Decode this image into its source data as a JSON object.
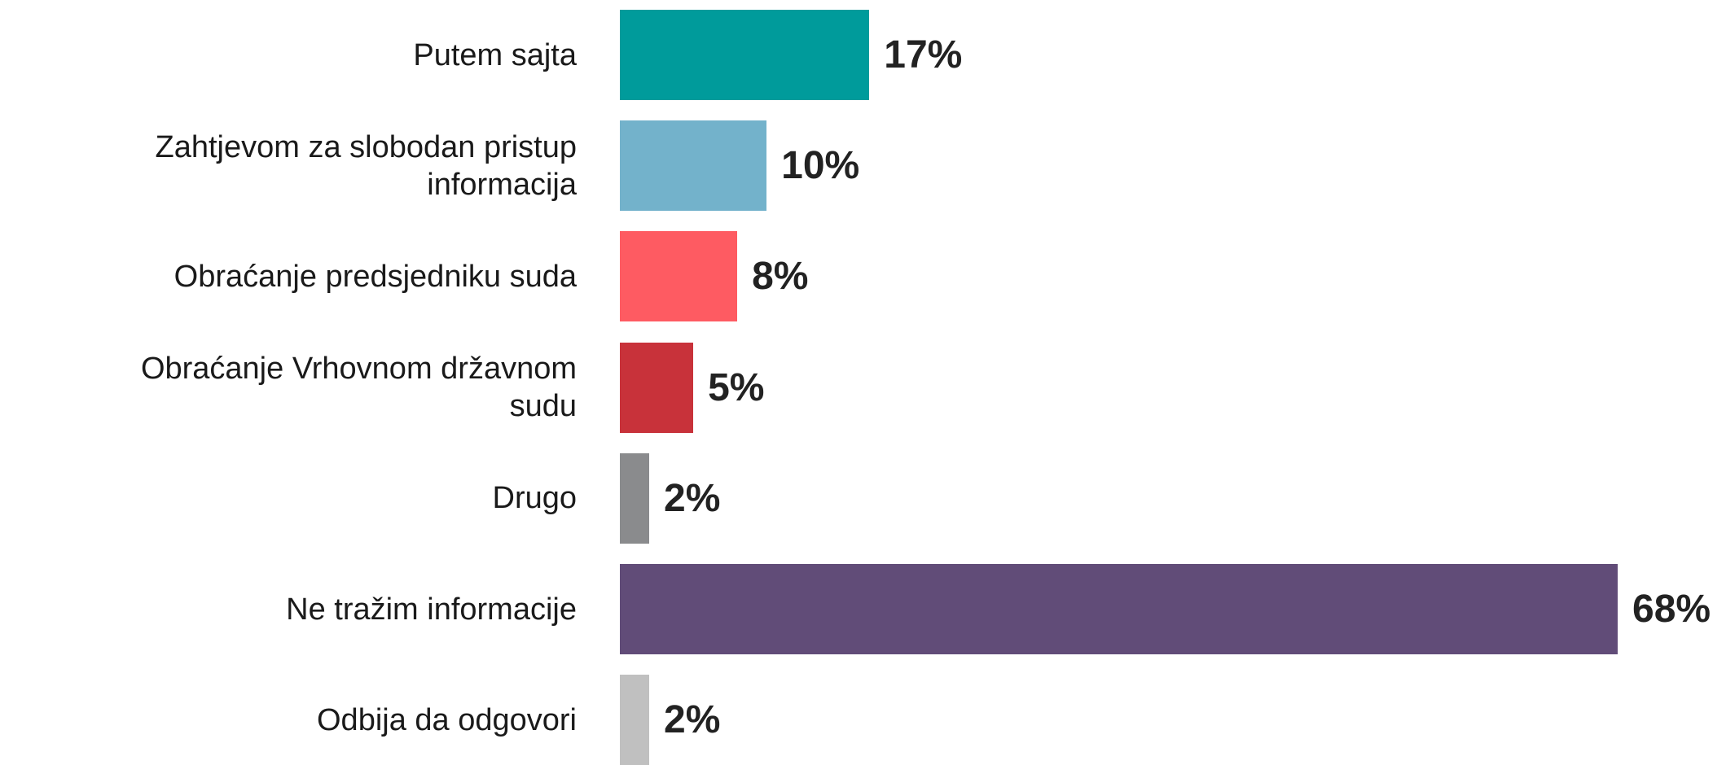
{
  "chart_data": {
    "type": "bar",
    "orientation": "horizontal",
    "categories": [
      "Putem sajta",
      "Zahtjevom za slobodan pristup informacija",
      "Obraćanje predsjedniku suda",
      "Obraćanje Vrhovnom državnom sudu",
      "Drugo",
      "Ne tražim informacije",
      "Odbija da odgovori"
    ],
    "values": [
      17,
      10,
      8,
      5,
      2,
      68,
      2
    ],
    "value_labels": [
      "17%",
      "10%",
      "8%",
      "5%",
      "2%",
      "68%",
      "2%"
    ],
    "colors": [
      "#009b9b",
      "#73b2cb",
      "#fe5b62",
      "#c8323a",
      "#8a8b8d",
      "#614c78",
      "#c0c0c0"
    ]
  }
}
